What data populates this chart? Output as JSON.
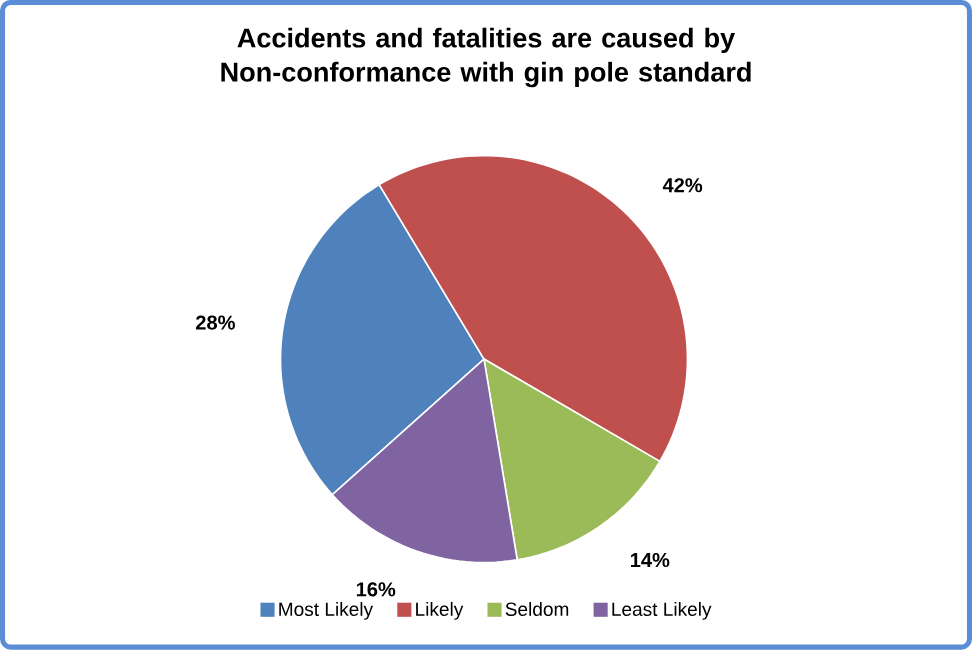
{
  "chart_data": {
    "type": "pie",
    "title": "Accidents and fatalities are caused by Non-conformance with gin pole standard",
    "categories": [
      "Most Likely",
      "Likely",
      "Seldom",
      "Least Likely"
    ],
    "values": [
      28,
      42,
      14,
      16
    ],
    "colors": [
      "#4f81bd",
      "#c0504d",
      "#9bbb59",
      "#8064a2"
    ],
    "value_labels": [
      "28%",
      "42%",
      "14%",
      "16%"
    ],
    "legend": "bottom"
  }
}
